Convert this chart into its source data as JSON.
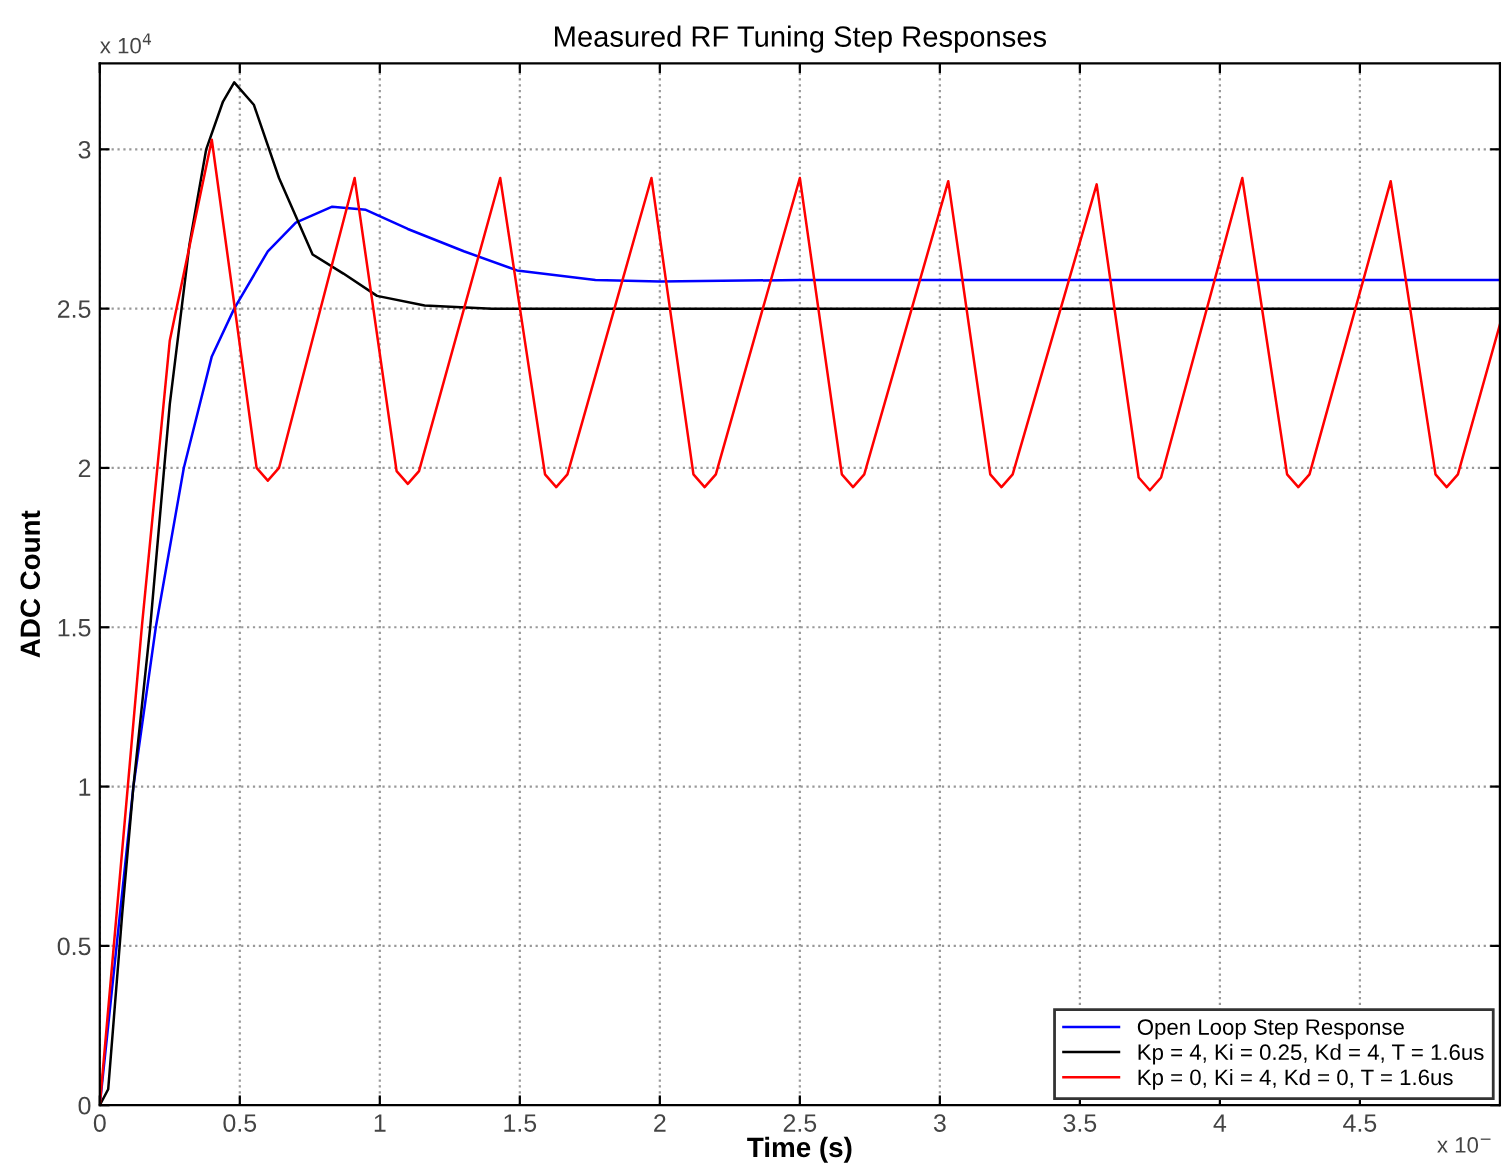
{
  "chart_data": {
    "type": "line",
    "title": "Measured RF Tuning Step Responses",
    "xlabel": "Time (s)",
    "ylabel": "ADC Count",
    "annotations": [
      "x 10$^{4}$",
      "x 10$^{−}$"
    ],
    "xlim": [
      0,
      5
    ],
    "ylim": [
      0,
      3.27
    ],
    "xticks": [
      0,
      0.5,
      1,
      1.5,
      2,
      2.5,
      3,
      3.5,
      4,
      4.5
    ],
    "yticks": [
      0,
      0.5,
      1,
      1.5,
      2,
      2.5,
      3
    ],
    "grid": true,
    "legend": "bottom right",
    "line_style": "solid",
    "marker": "none",
    "series": [
      {
        "name": "Open Loop Step Response",
        "color": "#0000ff",
        "x": [
          0,
          0.06,
          0.12,
          0.2,
          0.3,
          0.4,
          0.48,
          0.6,
          0.7,
          0.83,
          0.95,
          1.1,
          1.3,
          1.49,
          1.77,
          2.0,
          2.5,
          3.0,
          3.5,
          4.0,
          4.5,
          5.0
        ],
        "values": [
          0,
          0.5,
          1.0,
          1.5,
          2.0,
          2.35,
          2.5,
          2.68,
          2.77,
          2.82,
          2.81,
          2.75,
          2.68,
          2.62,
          2.59,
          2.585,
          2.59,
          2.59,
          2.59,
          2.59,
          2.59,
          2.59
        ]
      },
      {
        "name": "Kp = 4, Ki = 0.25, Kd = 4, T = 1.6us",
        "color": "#000000",
        "x": [
          0,
          0.03,
          0.08,
          0.12,
          0.18,
          0.25,
          0.32,
          0.38,
          0.44,
          0.48,
          0.55,
          0.64,
          0.76,
          0.87,
          0.99,
          1.16,
          1.4,
          2.0,
          2.5,
          3.0,
          3.5,
          4.0,
          4.5,
          5.0
        ],
        "values": [
          0,
          0.05,
          0.6,
          1.0,
          1.5,
          2.2,
          2.7,
          3.0,
          3.15,
          3.21,
          3.14,
          2.91,
          2.67,
          2.61,
          2.54,
          2.51,
          2.5,
          2.5,
          2.5,
          2.5,
          2.5,
          2.5,
          2.5,
          2.5
        ]
      },
      {
        "name": "Kp = 0, Ki = 4, Kd = 0, T = 1.6us",
        "color": "#ff0000",
        "x": [
          0,
          0.05,
          0.15,
          0.25,
          0.4,
          0.56,
          0.6,
          0.64,
          0.91,
          1.06,
          1.1,
          1.14,
          1.43,
          1.59,
          1.63,
          1.67,
          1.97,
          2.12,
          2.16,
          2.2,
          2.5,
          2.65,
          2.69,
          2.73,
          3.03,
          3.18,
          3.22,
          3.26,
          3.56,
          3.71,
          3.75,
          3.79,
          4.08,
          4.24,
          4.28,
          4.32,
          4.61,
          4.77,
          4.81,
          4.85,
          5.0
        ],
        "values": [
          0,
          0.5,
          1.5,
          2.4,
          3.03,
          2.0,
          1.96,
          2.0,
          2.91,
          1.99,
          1.95,
          1.99,
          2.91,
          1.98,
          1.94,
          1.98,
          2.91,
          1.98,
          1.94,
          1.98,
          2.91,
          1.98,
          1.94,
          1.98,
          2.9,
          1.98,
          1.94,
          1.98,
          2.89,
          1.97,
          1.93,
          1.97,
          2.91,
          1.98,
          1.94,
          1.98,
          2.9,
          1.98,
          1.94,
          1.98,
          2.45
        ]
      }
    ]
  }
}
